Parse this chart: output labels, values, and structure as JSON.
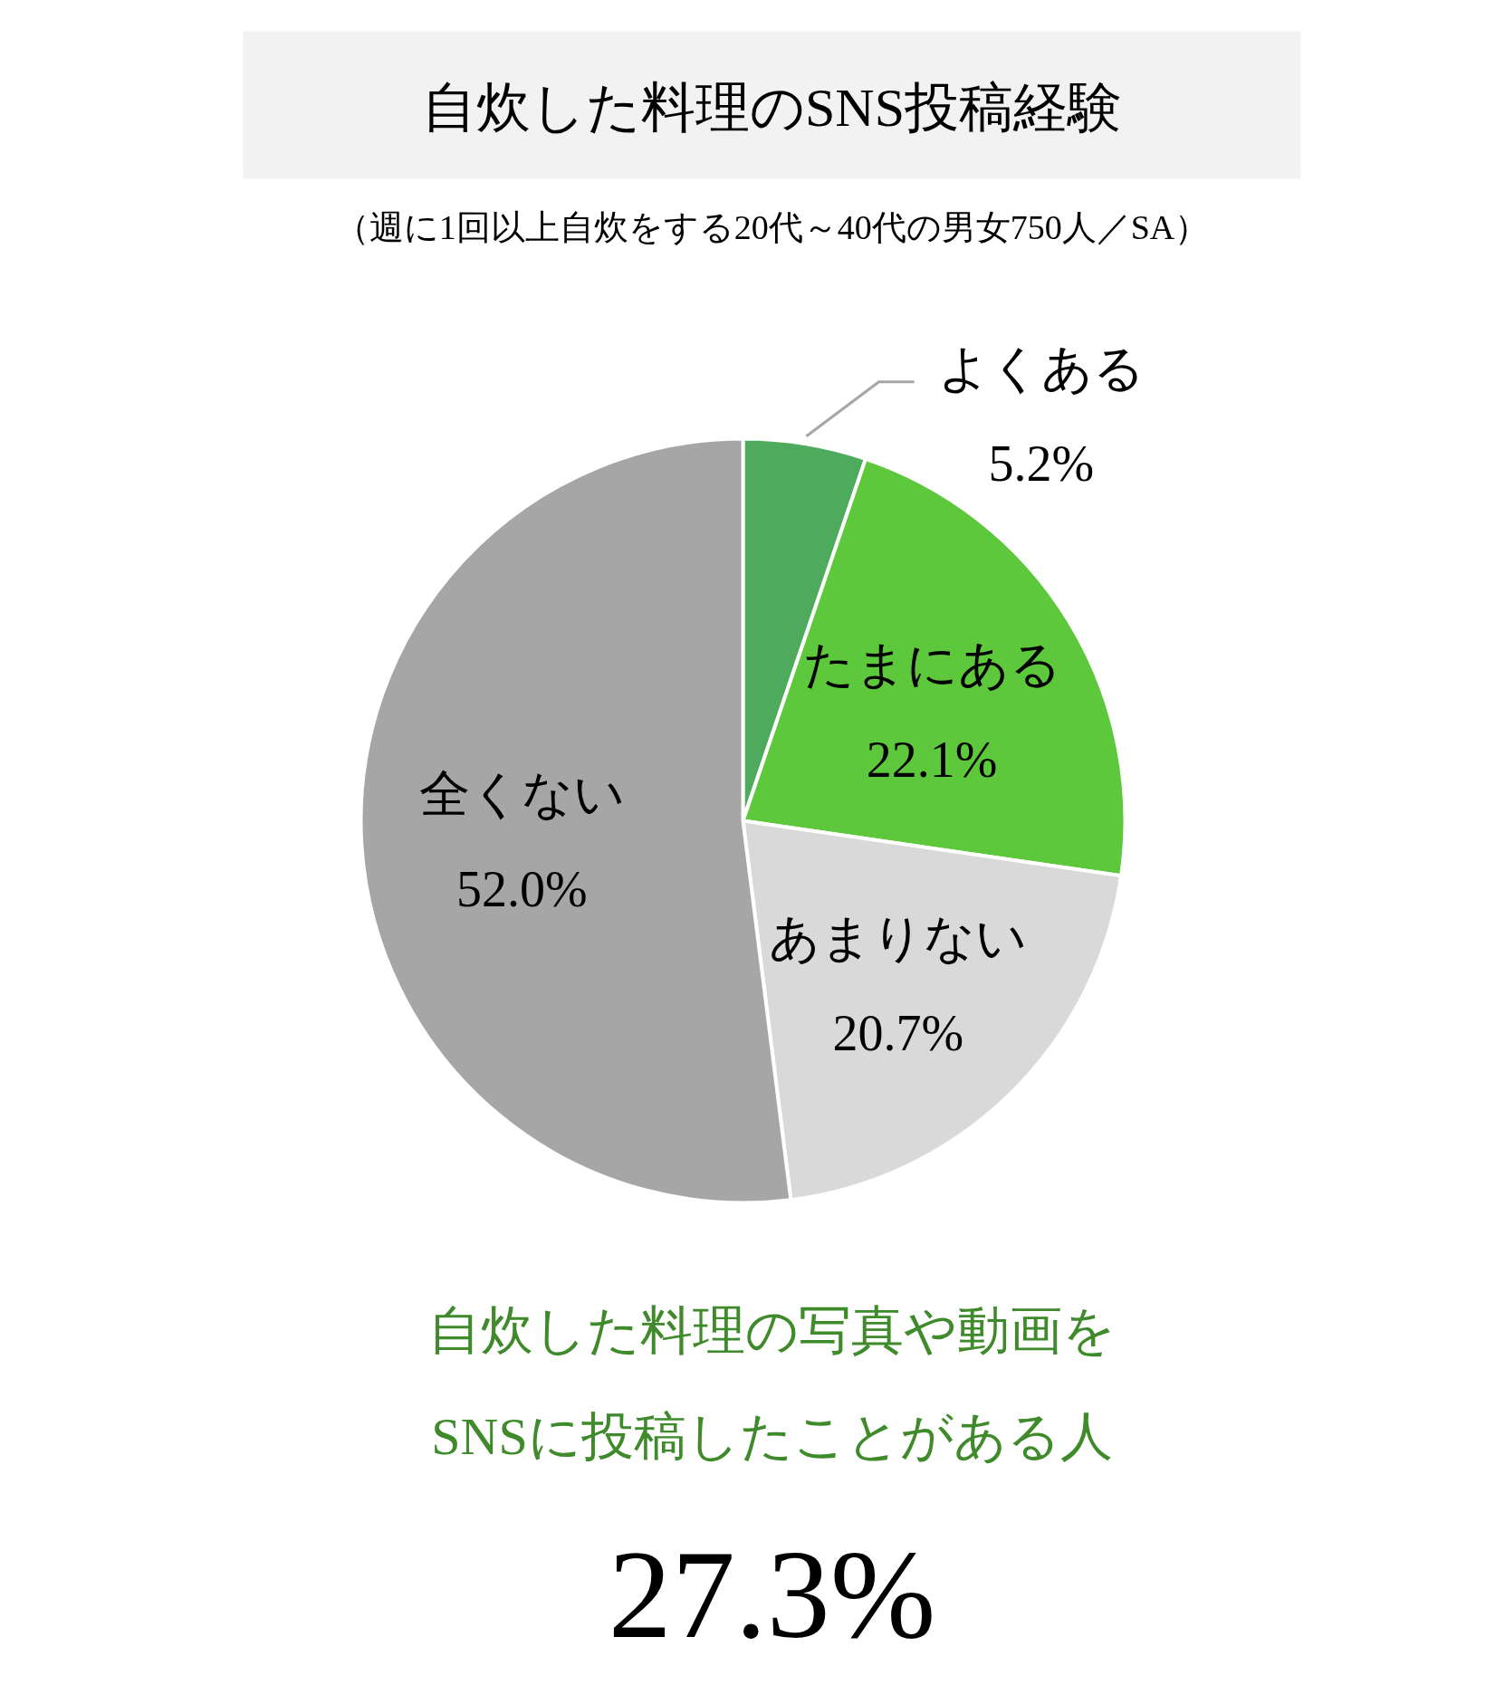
{
  "chart_data": {
    "type": "pie",
    "title": "自炊した料理のSNS投稿経験",
    "subtitle": "（週に1回以上自炊をする20代～40代の男女750人／SA）",
    "categories": [
      "よくある",
      "たまにある",
      "あまりない",
      "全くない"
    ],
    "values": [
      5.2,
      22.1,
      20.7,
      52.0
    ],
    "colors": [
      "#4eaa5c",
      "#5dc83c",
      "#d9d9d9",
      "#a6a6a6"
    ],
    "value_labels": [
      "5.2%",
      "22.1%",
      "20.7%",
      "52.0%"
    ],
    "annotations": [
      "自炊した料理の写真や動画を\nSNSに投稿したことがある人",
      "27.3%"
    ]
  }
}
